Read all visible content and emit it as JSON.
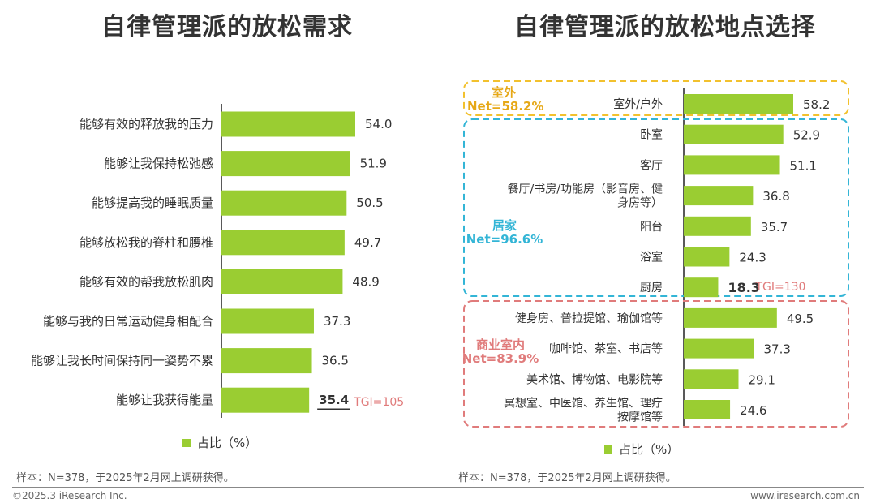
{
  "titles": {
    "left": "自律管理派的放松需求",
    "right": "自律管理派的放松地点选择"
  },
  "notes": {
    "left": "样本：N=378，于2025年2月网上调研获得。",
    "right": "样本：N=378，于2025年2月网上调研获得。"
  },
  "footer": {
    "copyright": "©2025.3 iResearch Inc.",
    "website": "www.iresearch.com.cn"
  },
  "colors": {
    "bar": "#9ACD32",
    "outdoor_box": "#F2C12E",
    "home_box": "#33B5D6",
    "commercial_box": "#E07B7B",
    "tgi": "#E07B7B"
  },
  "chart_data": [
    {
      "type": "bar",
      "orientation": "horizontal",
      "title": "自律管理派的放松需求",
      "legend": "占比（%）",
      "categories": [
        "能够有效的释放我的压力",
        "能够让我保持松弛感",
        "能够提高我的睡眠质量",
        "能够放松我的脊柱和腰椎",
        "能够有效的帮我放松肌肉",
        "能够与我的日常运动健身相配合",
        "能够让我长时间保持同一姿势不累",
        "能够让我获得能量"
      ],
      "values": [
        54.0,
        51.9,
        50.5,
        49.7,
        48.9,
        37.3,
        36.5,
        35.4
      ],
      "value_labels": [
        "54.0",
        "51.9",
        "50.5",
        "49.7",
        "48.9",
        "37.3",
        "36.5",
        "35.4"
      ],
      "highlight_index": 7,
      "annotation": "TGI=105",
      "xlim": [
        0,
        60
      ]
    },
    {
      "type": "bar",
      "orientation": "horizontal",
      "title": "自律管理派的放松地点选择",
      "legend": "占比（%）",
      "categories": [
        "室外/户外",
        "卧室",
        "客厅",
        "餐厅/书房/功能房（影音房、健身房等）",
        "阳台",
        "浴室",
        "厨房",
        "健身房、普拉提馆、瑜伽馆等",
        "咖啡馆、茶室、书店等",
        "美术馆、博物馆、电影院等",
        "冥想室、中医馆、养生馆、理疗按摩馆等"
      ],
      "label_lines": [
        [
          "室外/户外"
        ],
        [
          "卧室"
        ],
        [
          "客厅"
        ],
        [
          "餐厅/书房/功能房（影音房、健",
          "身房等）"
        ],
        [
          "阳台"
        ],
        [
          "浴室"
        ],
        [
          "厨房"
        ],
        [
          "健身房、普拉提馆、瑜伽馆等"
        ],
        [
          "咖啡馆、茶室、书店等"
        ],
        [
          "美术馆、博物馆、电影院等"
        ],
        [
          "冥想室、中医馆、养生馆、理疗",
          "按摩馆等"
        ]
      ],
      "values": [
        58.2,
        52.9,
        51.1,
        36.8,
        35.7,
        24.3,
        18.3,
        49.5,
        37.3,
        29.1,
        24.6
      ],
      "value_labels": [
        "58.2",
        "52.9",
        "51.1",
        "36.8",
        "35.7",
        "24.3",
        "18.3",
        "49.5",
        "37.3",
        "29.1",
        "24.6"
      ],
      "highlight_index": 6,
      "annotation": "TGI=130",
      "groups": [
        {
          "name": "室外",
          "net": "Net=58.2%",
          "start": 0,
          "end": 0
        },
        {
          "name": "居家",
          "net": "Net=96.6%",
          "start": 1,
          "end": 6
        },
        {
          "name": "商业室内",
          "net": "Net=83.9%",
          "start": 7,
          "end": 10
        }
      ],
      "xlim": [
        0,
        60
      ]
    }
  ]
}
